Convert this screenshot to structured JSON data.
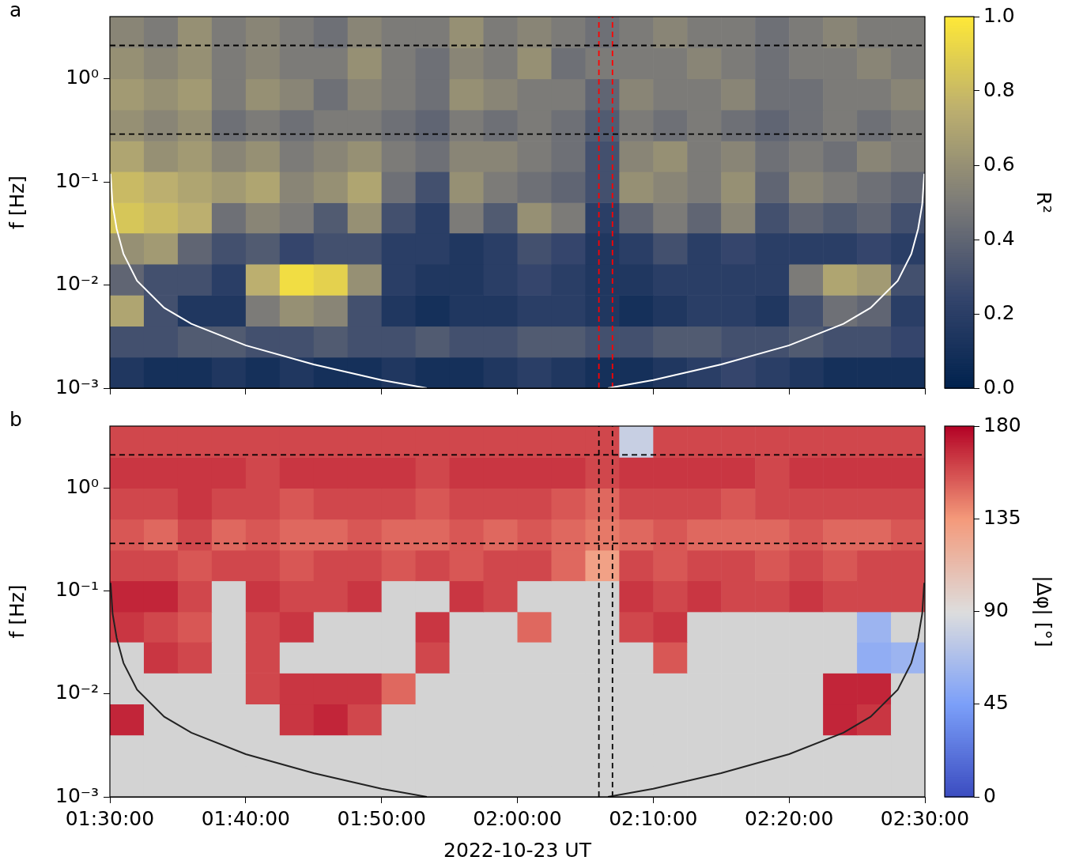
{
  "chart_data": [
    {
      "type": "heatmap",
      "panel": "a",
      "y_label": "f [Hz]",
      "xlim": [
        5400,
        9000
      ],
      "xticks": [
        5400,
        6000,
        6600,
        7200,
        7800,
        8400,
        9000
      ],
      "ylim": [
        0.001,
        4
      ],
      "yticks": [
        {
          "value": 0.001,
          "label": "10⁻³"
        },
        {
          "value": 0.01,
          "label": "10⁻²"
        },
        {
          "value": 0.1,
          "label": "10⁻¹"
        },
        {
          "value": 1,
          "label": "10⁰"
        }
      ],
      "log": "y",
      "grid": false,
      "tick_labels": "y",
      "x_edges": [
        5400,
        5550,
        5700,
        5850,
        6000,
        6150,
        6300,
        6450,
        6600,
        6750,
        6900,
        7050,
        7200,
        7350,
        7500,
        7650,
        7800,
        7950,
        8100,
        8250,
        8400,
        8550,
        8700,
        8850,
        9000
      ],
      "y_edges": [
        0.001,
        0.002,
        0.004,
        0.008,
        0.016,
        0.032,
        0.063,
        0.126,
        0.25,
        0.5,
        1,
        2,
        4
      ],
      "cells": [
        [
          0.15,
          0.1,
          0.1,
          0.15,
          0.1,
          0.15,
          0.1,
          0.1,
          0.15,
          0.1,
          0.1,
          0.15,
          0.2,
          0.15,
          0.1,
          0.1,
          0.15,
          0.2,
          0.25,
          0.2,
          0.15,
          0.1,
          0.1,
          0.1
        ],
        [
          0.3,
          0.3,
          0.35,
          0.35,
          0.3,
          0.3,
          0.35,
          0.3,
          0.3,
          0.35,
          0.3,
          0.3,
          0.35,
          0.35,
          0.3,
          0.3,
          0.35,
          0.35,
          0.3,
          0.3,
          0.35,
          0.3,
          0.3,
          0.25
        ],
        [
          0.7,
          0.3,
          0.15,
          0.15,
          0.5,
          0.6,
          0.55,
          0.3,
          0.15,
          0.1,
          0.15,
          0.15,
          0.2,
          0.2,
          0.15,
          0.1,
          0.15,
          0.2,
          0.2,
          0.15,
          0.3,
          0.45,
          0.4,
          0.2
        ],
        [
          0.4,
          0.3,
          0.3,
          0.2,
          0.75,
          0.95,
          0.9,
          0.6,
          0.2,
          0.15,
          0.15,
          0.2,
          0.25,
          0.2,
          0.15,
          0.15,
          0.2,
          0.2,
          0.2,
          0.2,
          0.5,
          0.7,
          0.65,
          0.3
        ],
        [
          0.6,
          0.65,
          0.4,
          0.3,
          0.35,
          0.25,
          0.3,
          0.3,
          0.2,
          0.2,
          0.15,
          0.2,
          0.3,
          0.25,
          0.15,
          0.2,
          0.3,
          0.2,
          0.25,
          0.2,
          0.2,
          0.2,
          0.25,
          0.2
        ],
        [
          0.85,
          0.8,
          0.75,
          0.45,
          0.55,
          0.5,
          0.35,
          0.6,
          0.3,
          0.2,
          0.5,
          0.35,
          0.6,
          0.5,
          0.2,
          0.4,
          0.5,
          0.4,
          0.55,
          0.3,
          0.4,
          0.35,
          0.4,
          0.3
        ],
        [
          0.8,
          0.75,
          0.7,
          0.65,
          0.7,
          0.55,
          0.6,
          0.7,
          0.45,
          0.3,
          0.6,
          0.5,
          0.45,
          0.4,
          0.3,
          0.6,
          0.55,
          0.5,
          0.6,
          0.4,
          0.55,
          0.5,
          0.45,
          0.4
        ],
        [
          0.7,
          0.6,
          0.65,
          0.55,
          0.6,
          0.5,
          0.55,
          0.6,
          0.5,
          0.45,
          0.55,
          0.55,
          0.5,
          0.45,
          0.3,
          0.55,
          0.6,
          0.5,
          0.55,
          0.45,
          0.5,
          0.45,
          0.55,
          0.5
        ],
        [
          0.6,
          0.55,
          0.6,
          0.45,
          0.5,
          0.45,
          0.5,
          0.5,
          0.45,
          0.4,
          0.5,
          0.45,
          0.5,
          0.45,
          0.35,
          0.5,
          0.45,
          0.5,
          0.45,
          0.4,
          0.45,
          0.5,
          0.45,
          0.5
        ],
        [
          0.65,
          0.6,
          0.65,
          0.5,
          0.6,
          0.55,
          0.45,
          0.55,
          0.5,
          0.45,
          0.6,
          0.55,
          0.5,
          0.5,
          0.4,
          0.55,
          0.5,
          0.5,
          0.55,
          0.45,
          0.45,
          0.5,
          0.5,
          0.55
        ],
        [
          0.6,
          0.55,
          0.6,
          0.5,
          0.55,
          0.5,
          0.5,
          0.6,
          0.5,
          0.45,
          0.55,
          0.5,
          0.6,
          0.45,
          0.5,
          0.5,
          0.5,
          0.55,
          0.5,
          0.45,
          0.5,
          0.5,
          0.55,
          0.5
        ],
        [
          0.55,
          0.5,
          0.6,
          0.5,
          0.55,
          0.5,
          0.45,
          0.55,
          0.5,
          0.5,
          0.6,
          0.5,
          0.55,
          0.5,
          0.45,
          0.5,
          0.55,
          0.5,
          0.5,
          0.45,
          0.5,
          0.55,
          0.5,
          0.5
        ]
      ],
      "color_range": [
        0,
        1
      ],
      "color_ticks": [
        {
          "value": 0,
          "label": "0.0"
        },
        0.2,
        0.4,
        0.6,
        0.8,
        {
          "value": 1,
          "label": "1.0"
        }
      ],
      "color_label": "R²",
      "lines": [
        {
          "x": [
            5403,
            5412,
            5430,
            5460,
            5520,
            5640,
            5760,
            6000,
            6300,
            6600,
            6800
          ],
          "y": [
            0.12,
            0.06,
            0.035,
            0.02,
            0.011,
            0.006,
            0.0042,
            0.0026,
            0.0017,
            0.0012,
            0.001
          ],
          "color": "#ffffff"
        },
        {
          "x": [
            7600,
            7800,
            8100,
            8400,
            8640,
            8760,
            8880,
            8940,
            8970,
            8988,
            8997
          ],
          "y": [
            0.001,
            0.0012,
            0.0017,
            0.0026,
            0.0042,
            0.006,
            0.011,
            0.02,
            0.035,
            0.06,
            0.12
          ],
          "color": "#ffffff"
        }
      ],
      "hlines": {
        "values": [
          0.29,
          2.1
        ],
        "color": "#000000",
        "line_style": "dashed"
      },
      "vlines": {
        "values": [
          7560,
          7620
        ],
        "color": "#ff0000",
        "line_style": "dashed"
      }
    },
    {
      "type": "heatmap",
      "panel": "b",
      "x_label": "2022-10-23 UT",
      "y_label": "f [Hz]",
      "xlim": [
        5400,
        9000
      ],
      "xticks": [
        {
          "value": 5400,
          "label": "01:30:00"
        },
        {
          "value": 6000,
          "label": "01:40:00"
        },
        {
          "value": 6600,
          "label": "01:50:00"
        },
        {
          "value": 7200,
          "label": "02:00:00"
        },
        {
          "value": 7800,
          "label": "02:10:00"
        },
        {
          "value": 8400,
          "label": "02:20:00"
        },
        {
          "value": 9000,
          "label": "02:30:00"
        }
      ],
      "ylim": [
        0.001,
        4
      ],
      "yticks": [
        {
          "value": 0.001,
          "label": "10⁻³"
        },
        {
          "value": 0.01,
          "label": "10⁻²"
        },
        {
          "value": 0.1,
          "label": "10⁻¹"
        },
        {
          "value": 1,
          "label": "10⁰"
        }
      ],
      "log": "y",
      "grid": false,
      "x_edges": [
        5400,
        5550,
        5700,
        5850,
        6000,
        6150,
        6300,
        6450,
        6600,
        6750,
        6900,
        7050,
        7200,
        7350,
        7500,
        7650,
        7800,
        7950,
        8100,
        8250,
        8400,
        8550,
        8700,
        8850,
        9000
      ],
      "y_edges": [
        0.001,
        0.002,
        0.004,
        0.008,
        0.016,
        0.032,
        0.063,
        0.126,
        0.25,
        0.5,
        1,
        2,
        4
      ],
      "cells": [
        [
          null,
          null,
          null,
          null,
          null,
          null,
          null,
          null,
          null,
          null,
          null,
          null,
          null,
          null,
          null,
          null,
          null,
          null,
          null,
          null,
          null,
          null,
          null,
          null
        ],
        [
          null,
          null,
          null,
          null,
          null,
          null,
          null,
          null,
          null,
          null,
          null,
          null,
          null,
          null,
          null,
          null,
          null,
          null,
          null,
          null,
          null,
          null,
          null,
          null
        ],
        [
          170,
          null,
          null,
          null,
          null,
          165,
          170,
          160,
          null,
          null,
          null,
          null,
          null,
          null,
          null,
          null,
          null,
          null,
          null,
          null,
          null,
          170,
          165,
          null
        ],
        [
          null,
          null,
          null,
          null,
          160,
          165,
          165,
          165,
          150,
          null,
          null,
          null,
          null,
          null,
          null,
          null,
          null,
          null,
          null,
          null,
          null,
          170,
          170,
          null
        ],
        [
          null,
          165,
          160,
          null,
          160,
          null,
          null,
          null,
          null,
          160,
          null,
          null,
          null,
          null,
          null,
          null,
          155,
          null,
          null,
          null,
          null,
          null,
          55,
          60
        ],
        [
          165,
          160,
          155,
          null,
          160,
          165,
          null,
          null,
          null,
          165,
          null,
          null,
          150,
          null,
          null,
          160,
          165,
          null,
          null,
          null,
          null,
          null,
          60,
          null
        ],
        [
          170,
          170,
          160,
          null,
          165,
          160,
          160,
          165,
          null,
          null,
          165,
          160,
          null,
          null,
          null,
          165,
          160,
          165,
          160,
          160,
          165,
          160,
          160,
          160
        ],
        [
          160,
          160,
          155,
          160,
          160,
          155,
          160,
          160,
          155,
          160,
          155,
          160,
          160,
          150,
          130,
          160,
          155,
          160,
          160,
          155,
          160,
          155,
          160,
          160
        ],
        [
          155,
          150,
          160,
          150,
          155,
          150,
          150,
          155,
          150,
          150,
          155,
          150,
          155,
          150,
          145,
          150,
          155,
          150,
          150,
          150,
          155,
          150,
          150,
          155
        ],
        [
          160,
          160,
          165,
          160,
          160,
          155,
          160,
          160,
          160,
          155,
          160,
          160,
          160,
          155,
          150,
          160,
          160,
          160,
          155,
          160,
          160,
          160,
          160,
          160
        ],
        [
          165,
          165,
          165,
          165,
          160,
          165,
          165,
          165,
          165,
          160,
          165,
          165,
          165,
          165,
          160,
          165,
          165,
          165,
          165,
          160,
          165,
          165,
          165,
          165
        ],
        [
          160,
          160,
          160,
          160,
          160,
          160,
          160,
          160,
          160,
          160,
          160,
          160,
          160,
          160,
          160,
          80,
          160,
          160,
          160,
          160,
          160,
          160,
          160,
          160
        ]
      ],
      "color_range": [
        0,
        180
      ],
      "color_ticks": [
        0,
        45,
        90,
        135,
        180
      ],
      "color_label": "|Δφ| [°]",
      "lines": [
        {
          "x": [
            5403,
            5412,
            5430,
            5460,
            5520,
            5640,
            5760,
            6000,
            6300,
            6600,
            6800
          ],
          "y": [
            0.12,
            0.06,
            0.035,
            0.02,
            0.011,
            0.006,
            0.0042,
            0.0026,
            0.0017,
            0.0012,
            0.001
          ],
          "color": "#222222"
        },
        {
          "x": [
            7600,
            7800,
            8100,
            8400,
            8640,
            8760,
            8880,
            8940,
            8970,
            8988,
            8997
          ],
          "y": [
            0.001,
            0.0012,
            0.0017,
            0.0026,
            0.0042,
            0.006,
            0.011,
            0.02,
            0.035,
            0.06,
            0.12
          ],
          "color": "#222222"
        }
      ],
      "hlines": {
        "values": [
          0.29,
          2.1
        ],
        "color": "#000000",
        "line_style": "dashed"
      },
      "vlines": {
        "values": [
          7560,
          7620
        ],
        "color": "#000000",
        "line_style": "dashed"
      }
    }
  ]
}
